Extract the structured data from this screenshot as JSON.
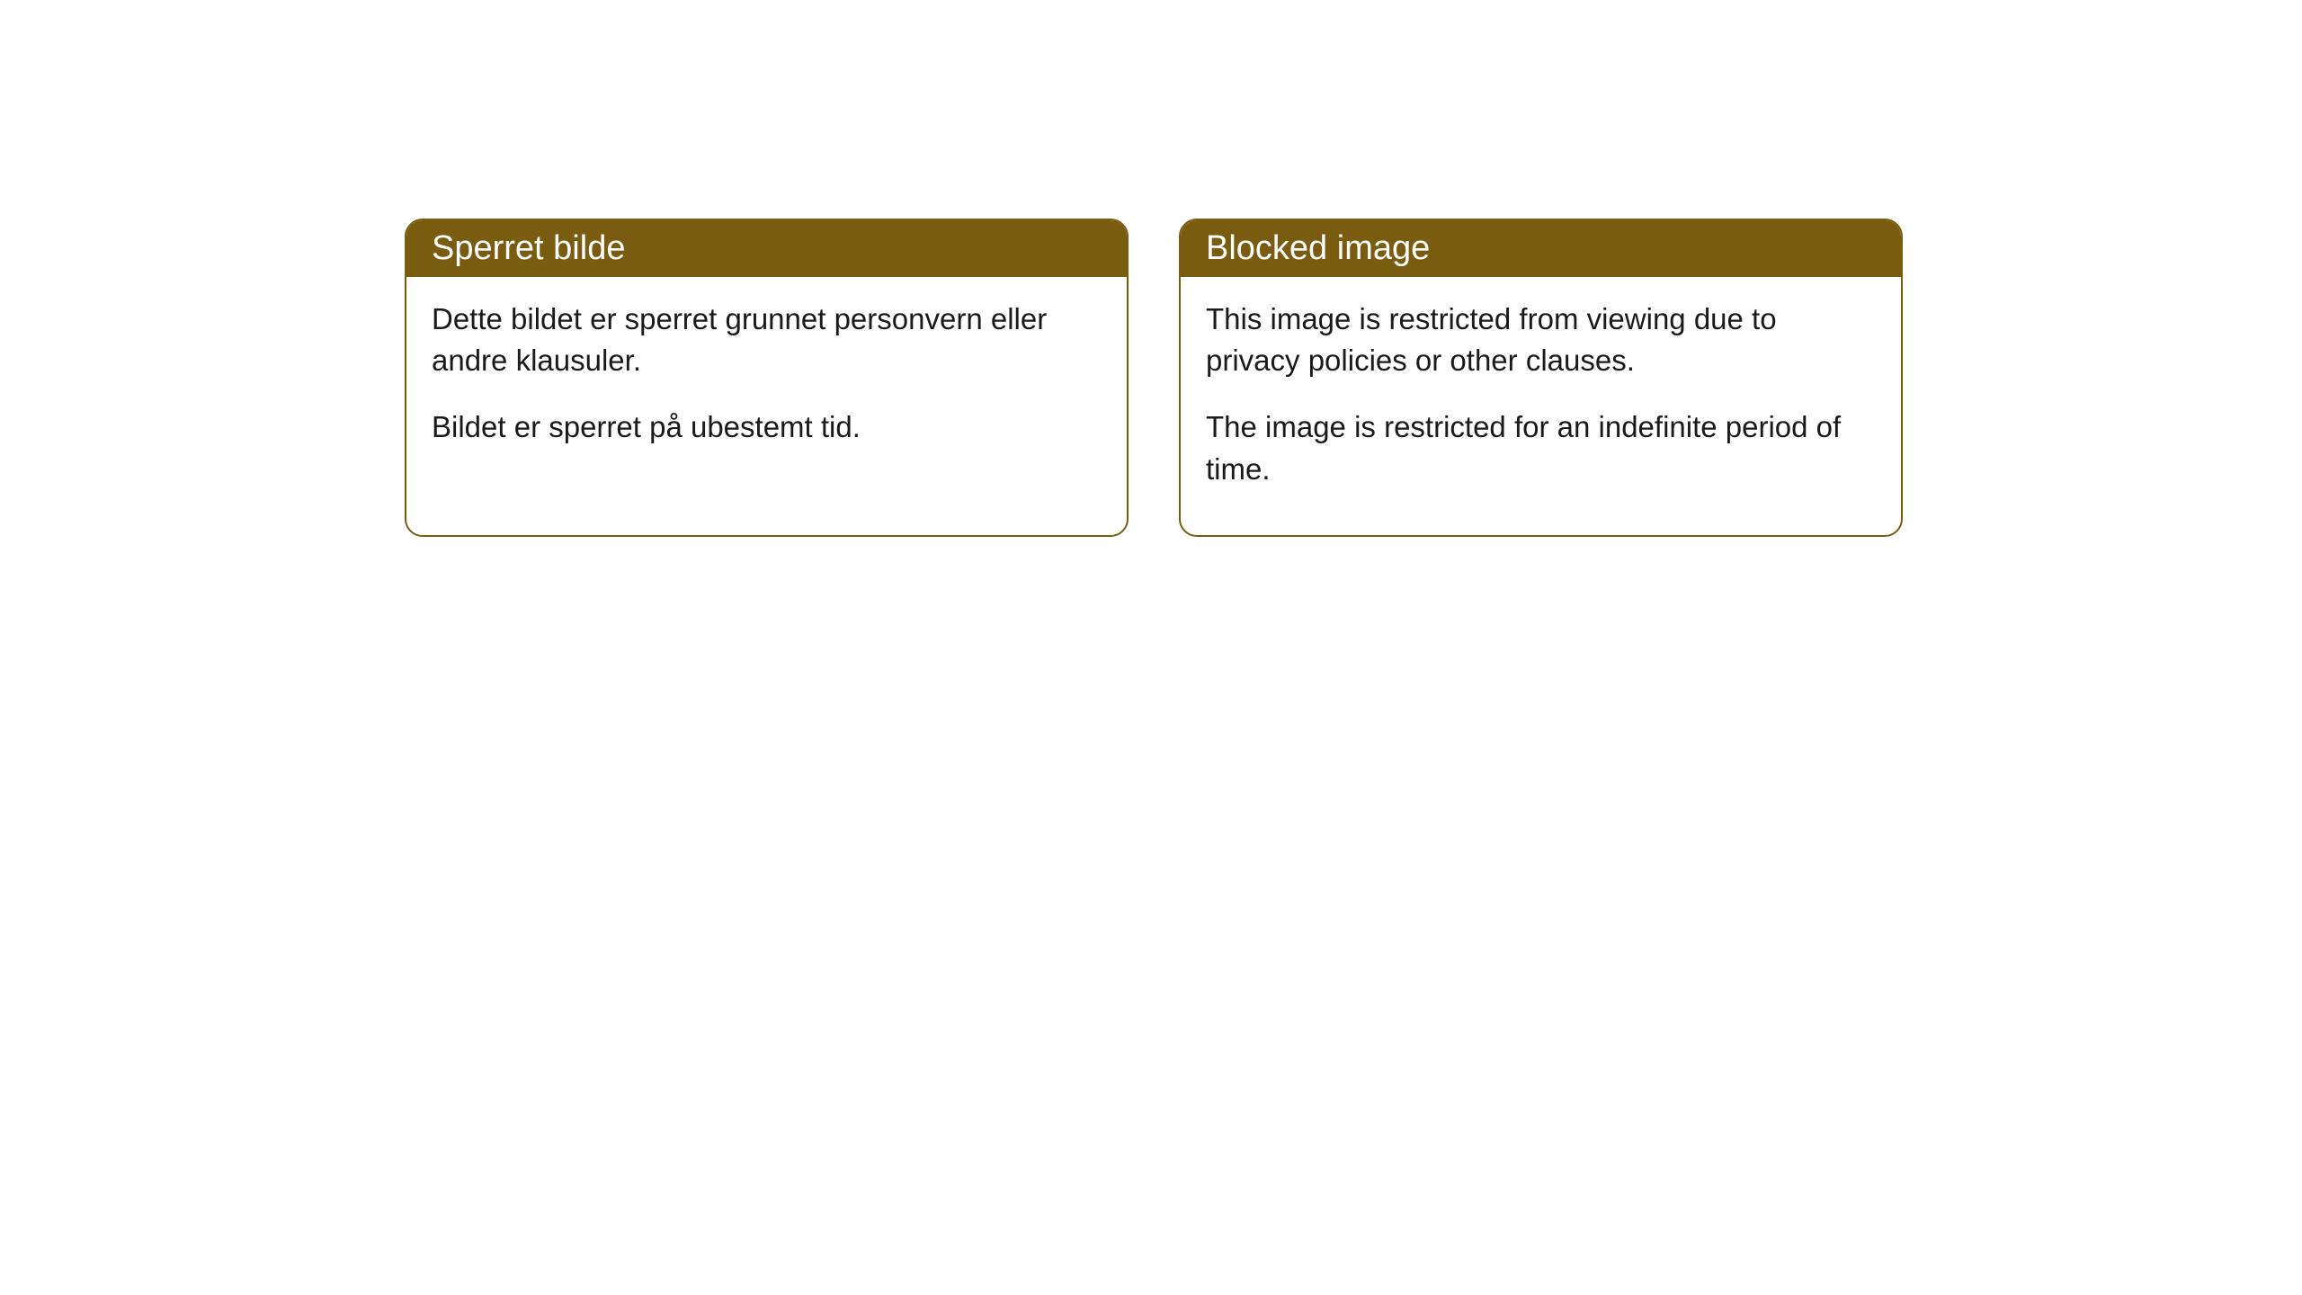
{
  "cards": [
    {
      "title": "Sperret bilde",
      "paragraph1": "Dette bildet er sperret grunnet personvern eller andre klausuler.",
      "paragraph2": "Bildet er sperret på ubestemt tid."
    },
    {
      "title": "Blocked image",
      "paragraph1": "This image is restricted from viewing due to privacy policies or other clauses.",
      "paragraph2": "The image is restricted for an indefinite period of time."
    }
  ],
  "style": {
    "header_bg": "#7a5c10",
    "header_text_color": "#ffffff",
    "border_color": "#7a5c10",
    "body_bg": "#ffffff",
    "body_text_color": "#1a1a1a",
    "border_radius": 20,
    "header_fontsize": 38,
    "body_fontsize": 33
  }
}
